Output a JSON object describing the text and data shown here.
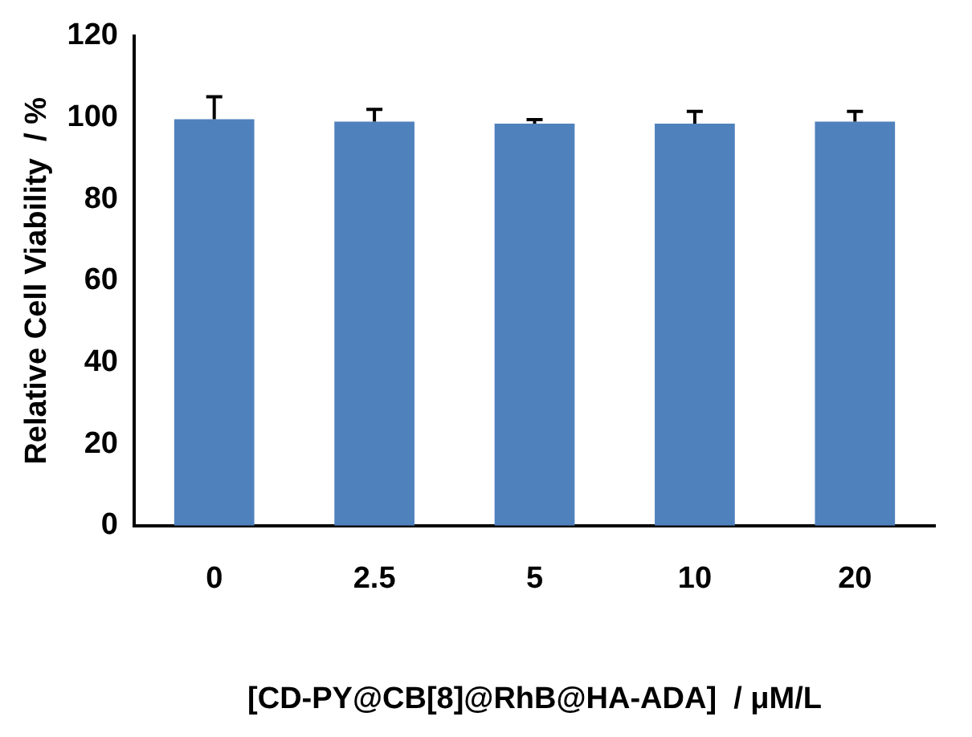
{
  "chart_data": {
    "type": "bar",
    "xlabel": "[CD-PY@CB[8]@RhB@HA-ADA]  / μM/L",
    "ylabel": "Relative Cell Viability  / %",
    "categories": [
      "0",
      "2.5",
      "5",
      "10",
      "20"
    ],
    "values": [
      99.6,
      99,
      98.5,
      98.5,
      99
    ],
    "errors": [
      5.5,
      3,
      1,
      3,
      2.5
    ],
    "color": "#4f81bd",
    "ylim": [
      0,
      120
    ],
    "yticks": [
      0,
      20,
      40,
      60,
      80,
      100,
      120
    ],
    "grid": false,
    "legend": false
  }
}
